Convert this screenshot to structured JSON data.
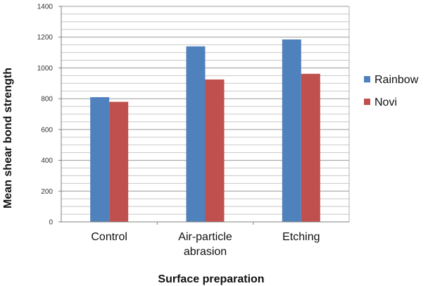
{
  "chart_data": {
    "type": "bar",
    "title": "",
    "xlabel": "Surface preparation",
    "ylabel": "Mean shear bond strength",
    "categories": [
      [
        "Control"
      ],
      [
        "Air-particle",
        "abrasion"
      ],
      [
        "Etching"
      ]
    ],
    "series": [
      {
        "name": "Rainbow",
        "color": "#4f81bd",
        "values": [
          810,
          1140,
          1185
        ]
      },
      {
        "name": "Novi",
        "color": "#c0504d",
        "values": [
          780,
          925,
          962
        ]
      }
    ],
    "ylim": [
      0,
      1400
    ],
    "yticks": [
      0,
      200,
      400,
      600,
      800,
      1000,
      1200,
      1400
    ],
    "grid": true,
    "legend_position": "right"
  }
}
